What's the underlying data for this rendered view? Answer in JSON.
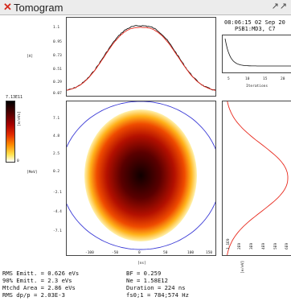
{
  "window": {
    "title": "Tomogram",
    "close_glyph": "✕",
    "buttons_glyph": "↗↗"
  },
  "header": {
    "timestamp": "08:06:15 02 Sep 20",
    "context": "PSB1:MD3, C7"
  },
  "profile_plot": {
    "yticks": [
      "1.1",
      "0.95",
      "0.73",
      "0.51",
      "0.29",
      "0.07"
    ],
    "ylabel": "[A]"
  },
  "convergence_plot": {
    "xticks": [
      "5",
      "10",
      "15",
      "20"
    ],
    "xlabel": "Iterations"
  },
  "colorbar": {
    "max_label": "7.13E11",
    "min_label": "0",
    "unit": "[e/eVs]"
  },
  "phase_space": {
    "yticks": [
      "7.1",
      "4.8",
      "2.5",
      "0.2",
      "-2.1",
      "-4.4",
      "-7.1"
    ],
    "ylabel": "[MeV]",
    "xticks": [
      "-100",
      "-50",
      "0",
      "50",
      "100",
      "150"
    ],
    "xlabel": "[ns]"
  },
  "energy_profile": {
    "xticks": [
      "1.1E9",
      "2E9",
      "3E9",
      "4E9",
      "5E9",
      "6E9"
    ],
    "xlabel": "[e/eV]"
  },
  "stats": {
    "left": [
      "RMS Emitt. = 0.626 eVs",
      "90% Emitt. = 2.3 eVs",
      "Mtchd Area = 2.86 eVs",
      "RMS dp/p = 2.03E-3"
    ],
    "right": [
      "BF = 0.259",
      "Ne = 1.58E12",
      "Duration = 224 ns",
      "fs0;1 = 784;574 Hz"
    ]
  },
  "colors": {
    "measured": "#111111",
    "reconstructed": "#e8291d",
    "separatrix": "#3a3ad6",
    "close": "#d52b1e"
  }
}
